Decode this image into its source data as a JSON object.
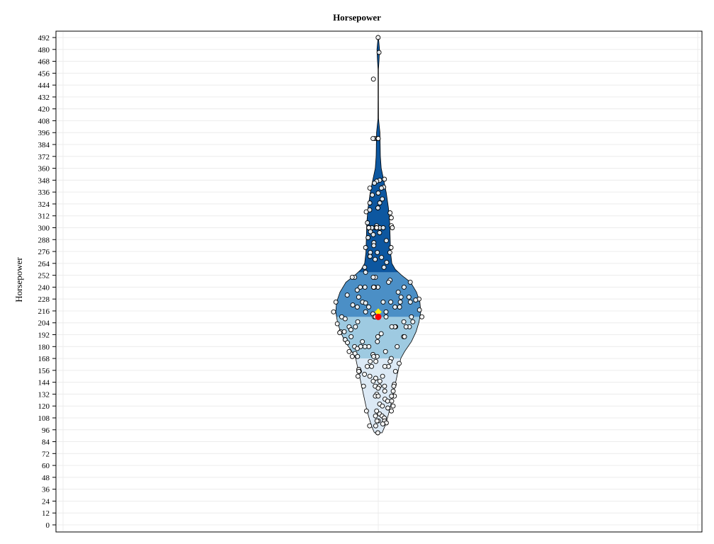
{
  "chart_data": {
    "type": "violin",
    "title": "Horsepower",
    "ylabel": "Horsepower",
    "xlabel": "",
    "ylim": [
      0,
      498
    ],
    "yticks": [
      0,
      12,
      24,
      36,
      48,
      60,
      72,
      84,
      96,
      108,
      120,
      132,
      144,
      156,
      168,
      180,
      192,
      204,
      216,
      228,
      240,
      252,
      264,
      276,
      288,
      300,
      312,
      324,
      336,
      348,
      360,
      372,
      384,
      396,
      408,
      420,
      432,
      444,
      456,
      468,
      480,
      492
    ],
    "grid": true,
    "quartiles": {
      "q1": 168,
      "median": 210,
      "q3": 255
    },
    "mean": 215,
    "min": 93,
    "max": 492,
    "colors": {
      "band_low": "#dce9f5",
      "band_q1_median": "#9ecae1",
      "band_median_q3": "#4b8fc6",
      "band_high": "#0d57a0",
      "median_marker": "#ff0000",
      "mean_marker": "#ffee00"
    },
    "points": [
      {
        "y": 492
      },
      {
        "y": 477
      },
      {
        "y": 450
      },
      {
        "y": 390
      },
      {
        "y": 390
      },
      {
        "y": 390
      },
      {
        "y": 390
      },
      {
        "y": 349
      },
      {
        "y": 348
      },
      {
        "y": 347
      },
      {
        "y": 345
      },
      {
        "y": 341
      },
      {
        "y": 340
      },
      {
        "y": 340
      },
      {
        "y": 335
      },
      {
        "y": 333
      },
      {
        "y": 329
      },
      {
        "y": 325
      },
      {
        "y": 325
      },
      {
        "y": 320
      },
      {
        "y": 318
      },
      {
        "y": 316
      },
      {
        "y": 315
      },
      {
        "y": 310
      },
      {
        "y": 305
      },
      {
        "y": 302
      },
      {
        "y": 302
      },
      {
        "y": 300
      },
      {
        "y": 300
      },
      {
        "y": 300
      },
      {
        "y": 300
      },
      {
        "y": 300
      },
      {
        "y": 300
      },
      {
        "y": 300
      },
      {
        "y": 300
      },
      {
        "y": 296
      },
      {
        "y": 295
      },
      {
        "y": 293
      },
      {
        "y": 290
      },
      {
        "y": 287
      },
      {
        "y": 285
      },
      {
        "y": 282
      },
      {
        "y": 280
      },
      {
        "y": 280
      },
      {
        "y": 275
      },
      {
        "y": 275
      },
      {
        "y": 275
      },
      {
        "y": 271
      },
      {
        "y": 270
      },
      {
        "y": 268
      },
      {
        "y": 265
      },
      {
        "y": 260
      },
      {
        "y": 260
      },
      {
        "y": 255
      },
      {
        "y": 250
      },
      {
        "y": 250
      },
      {
        "y": 250
      },
      {
        "y": 250
      },
      {
        "y": 247
      },
      {
        "y": 245
      },
      {
        "y": 245
      },
      {
        "y": 240
      },
      {
        "y": 240
      },
      {
        "y": 240
      },
      {
        "y": 240
      },
      {
        "y": 240
      },
      {
        "y": 240
      },
      {
        "y": 240
      },
      {
        "y": 240
      },
      {
        "y": 237
      },
      {
        "y": 235
      },
      {
        "y": 232
      },
      {
        "y": 230
      },
      {
        "y": 230
      },
      {
        "y": 230
      },
      {
        "y": 228
      },
      {
        "y": 227
      },
      {
        "y": 225
      },
      {
        "y": 225
      },
      {
        "y": 225
      },
      {
        "y": 225
      },
      {
        "y": 225
      },
      {
        "y": 225
      },
      {
        "y": 224
      },
      {
        "y": 222
      },
      {
        "y": 220
      },
      {
        "y": 220
      },
      {
        "y": 220
      },
      {
        "y": 220
      },
      {
        "y": 217
      },
      {
        "y": 215
      },
      {
        "y": 215
      },
      {
        "y": 215
      },
      {
        "y": 213
      },
      {
        "y": 210
      },
      {
        "y": 210
      },
      {
        "y": 210
      },
      {
        "y": 210
      },
      {
        "y": 210
      },
      {
        "y": 210
      },
      {
        "y": 208
      },
      {
        "y": 205
      },
      {
        "y": 205
      },
      {
        "y": 205
      },
      {
        "y": 203
      },
      {
        "y": 200
      },
      {
        "y": 200
      },
      {
        "y": 200
      },
      {
        "y": 200
      },
      {
        "y": 200
      },
      {
        "y": 200
      },
      {
        "y": 200
      },
      {
        "y": 197
      },
      {
        "y": 195
      },
      {
        "y": 195
      },
      {
        "y": 194
      },
      {
        "y": 193
      },
      {
        "y": 190
      },
      {
        "y": 190
      },
      {
        "y": 190
      },
      {
        "y": 190
      },
      {
        "y": 187
      },
      {
        "y": 185
      },
      {
        "y": 185
      },
      {
        "y": 184
      },
      {
        "y": 180
      },
      {
        "y": 180
      },
      {
        "y": 180
      },
      {
        "y": 180
      },
      {
        "y": 180
      },
      {
        "y": 178
      },
      {
        "y": 175
      },
      {
        "y": 175
      },
      {
        "y": 173
      },
      {
        "y": 172
      },
      {
        "y": 170
      },
      {
        "y": 170
      },
      {
        "y": 170
      },
      {
        "y": 170
      },
      {
        "y": 168
      },
      {
        "y": 165
      },
      {
        "y": 165
      },
      {
        "y": 165
      },
      {
        "y": 163
      },
      {
        "y": 160
      },
      {
        "y": 160
      },
      {
        "y": 160
      },
      {
        "y": 160
      },
      {
        "y": 157
      },
      {
        "y": 155
      },
      {
        "y": 155
      },
      {
        "y": 155
      },
      {
        "y": 152
      },
      {
        "y": 150
      },
      {
        "y": 150
      },
      {
        "y": 150
      },
      {
        "y": 148
      },
      {
        "y": 145
      },
      {
        "y": 145
      },
      {
        "y": 142
      },
      {
        "y": 140
      },
      {
        "y": 140
      },
      {
        "y": 140
      },
      {
        "y": 140
      },
      {
        "y": 140
      },
      {
        "y": 138
      },
      {
        "y": 135
      },
      {
        "y": 135
      },
      {
        "y": 132
      },
      {
        "y": 130
      },
      {
        "y": 130
      },
      {
        "y": 130
      },
      {
        "y": 130
      },
      {
        "y": 127
      },
      {
        "y": 125
      },
      {
        "y": 125
      },
      {
        "y": 122
      },
      {
        "y": 120
      },
      {
        "y": 120
      },
      {
        "y": 118
      },
      {
        "y": 115
      },
      {
        "y": 115
      },
      {
        "y": 115
      },
      {
        "y": 112
      },
      {
        "y": 110
      },
      {
        "y": 110
      },
      {
        "y": 108
      },
      {
        "y": 105
      },
      {
        "y": 105
      },
      {
        "y": 105
      },
      {
        "y": 103
      },
      {
        "y": 102
      },
      {
        "y": 100
      },
      {
        "y": 100
      },
      {
        "y": 93
      }
    ],
    "violin_profile": [
      [
        93,
        0.09
      ],
      [
        100,
        0.16
      ],
      [
        110,
        0.23
      ],
      [
        120,
        0.29
      ],
      [
        130,
        0.34
      ],
      [
        140,
        0.39
      ],
      [
        150,
        0.44
      ],
      [
        160,
        0.49
      ],
      [
        168,
        0.53
      ],
      [
        175,
        0.62
      ],
      [
        185,
        0.78
      ],
      [
        195,
        0.89
      ],
      [
        205,
        0.96
      ],
      [
        215,
        1.0
      ],
      [
        225,
        0.98
      ],
      [
        235,
        0.9
      ],
      [
        245,
        0.76
      ],
      [
        252,
        0.55
      ],
      [
        258,
        0.4
      ],
      [
        264,
        0.32
      ],
      [
        275,
        0.29
      ],
      [
        290,
        0.28
      ],
      [
        305,
        0.27
      ],
      [
        320,
        0.24
      ],
      [
        335,
        0.19
      ],
      [
        348,
        0.13
      ],
      [
        360,
        0.07
      ],
      [
        372,
        0.05
      ],
      [
        384,
        0.045
      ],
      [
        396,
        0.04
      ],
      [
        410,
        0.006
      ],
      [
        430,
        0.005
      ],
      [
        460,
        0.005
      ],
      [
        470,
        0.02
      ],
      [
        480,
        0.03
      ],
      [
        492,
        0.005
      ]
    ]
  }
}
